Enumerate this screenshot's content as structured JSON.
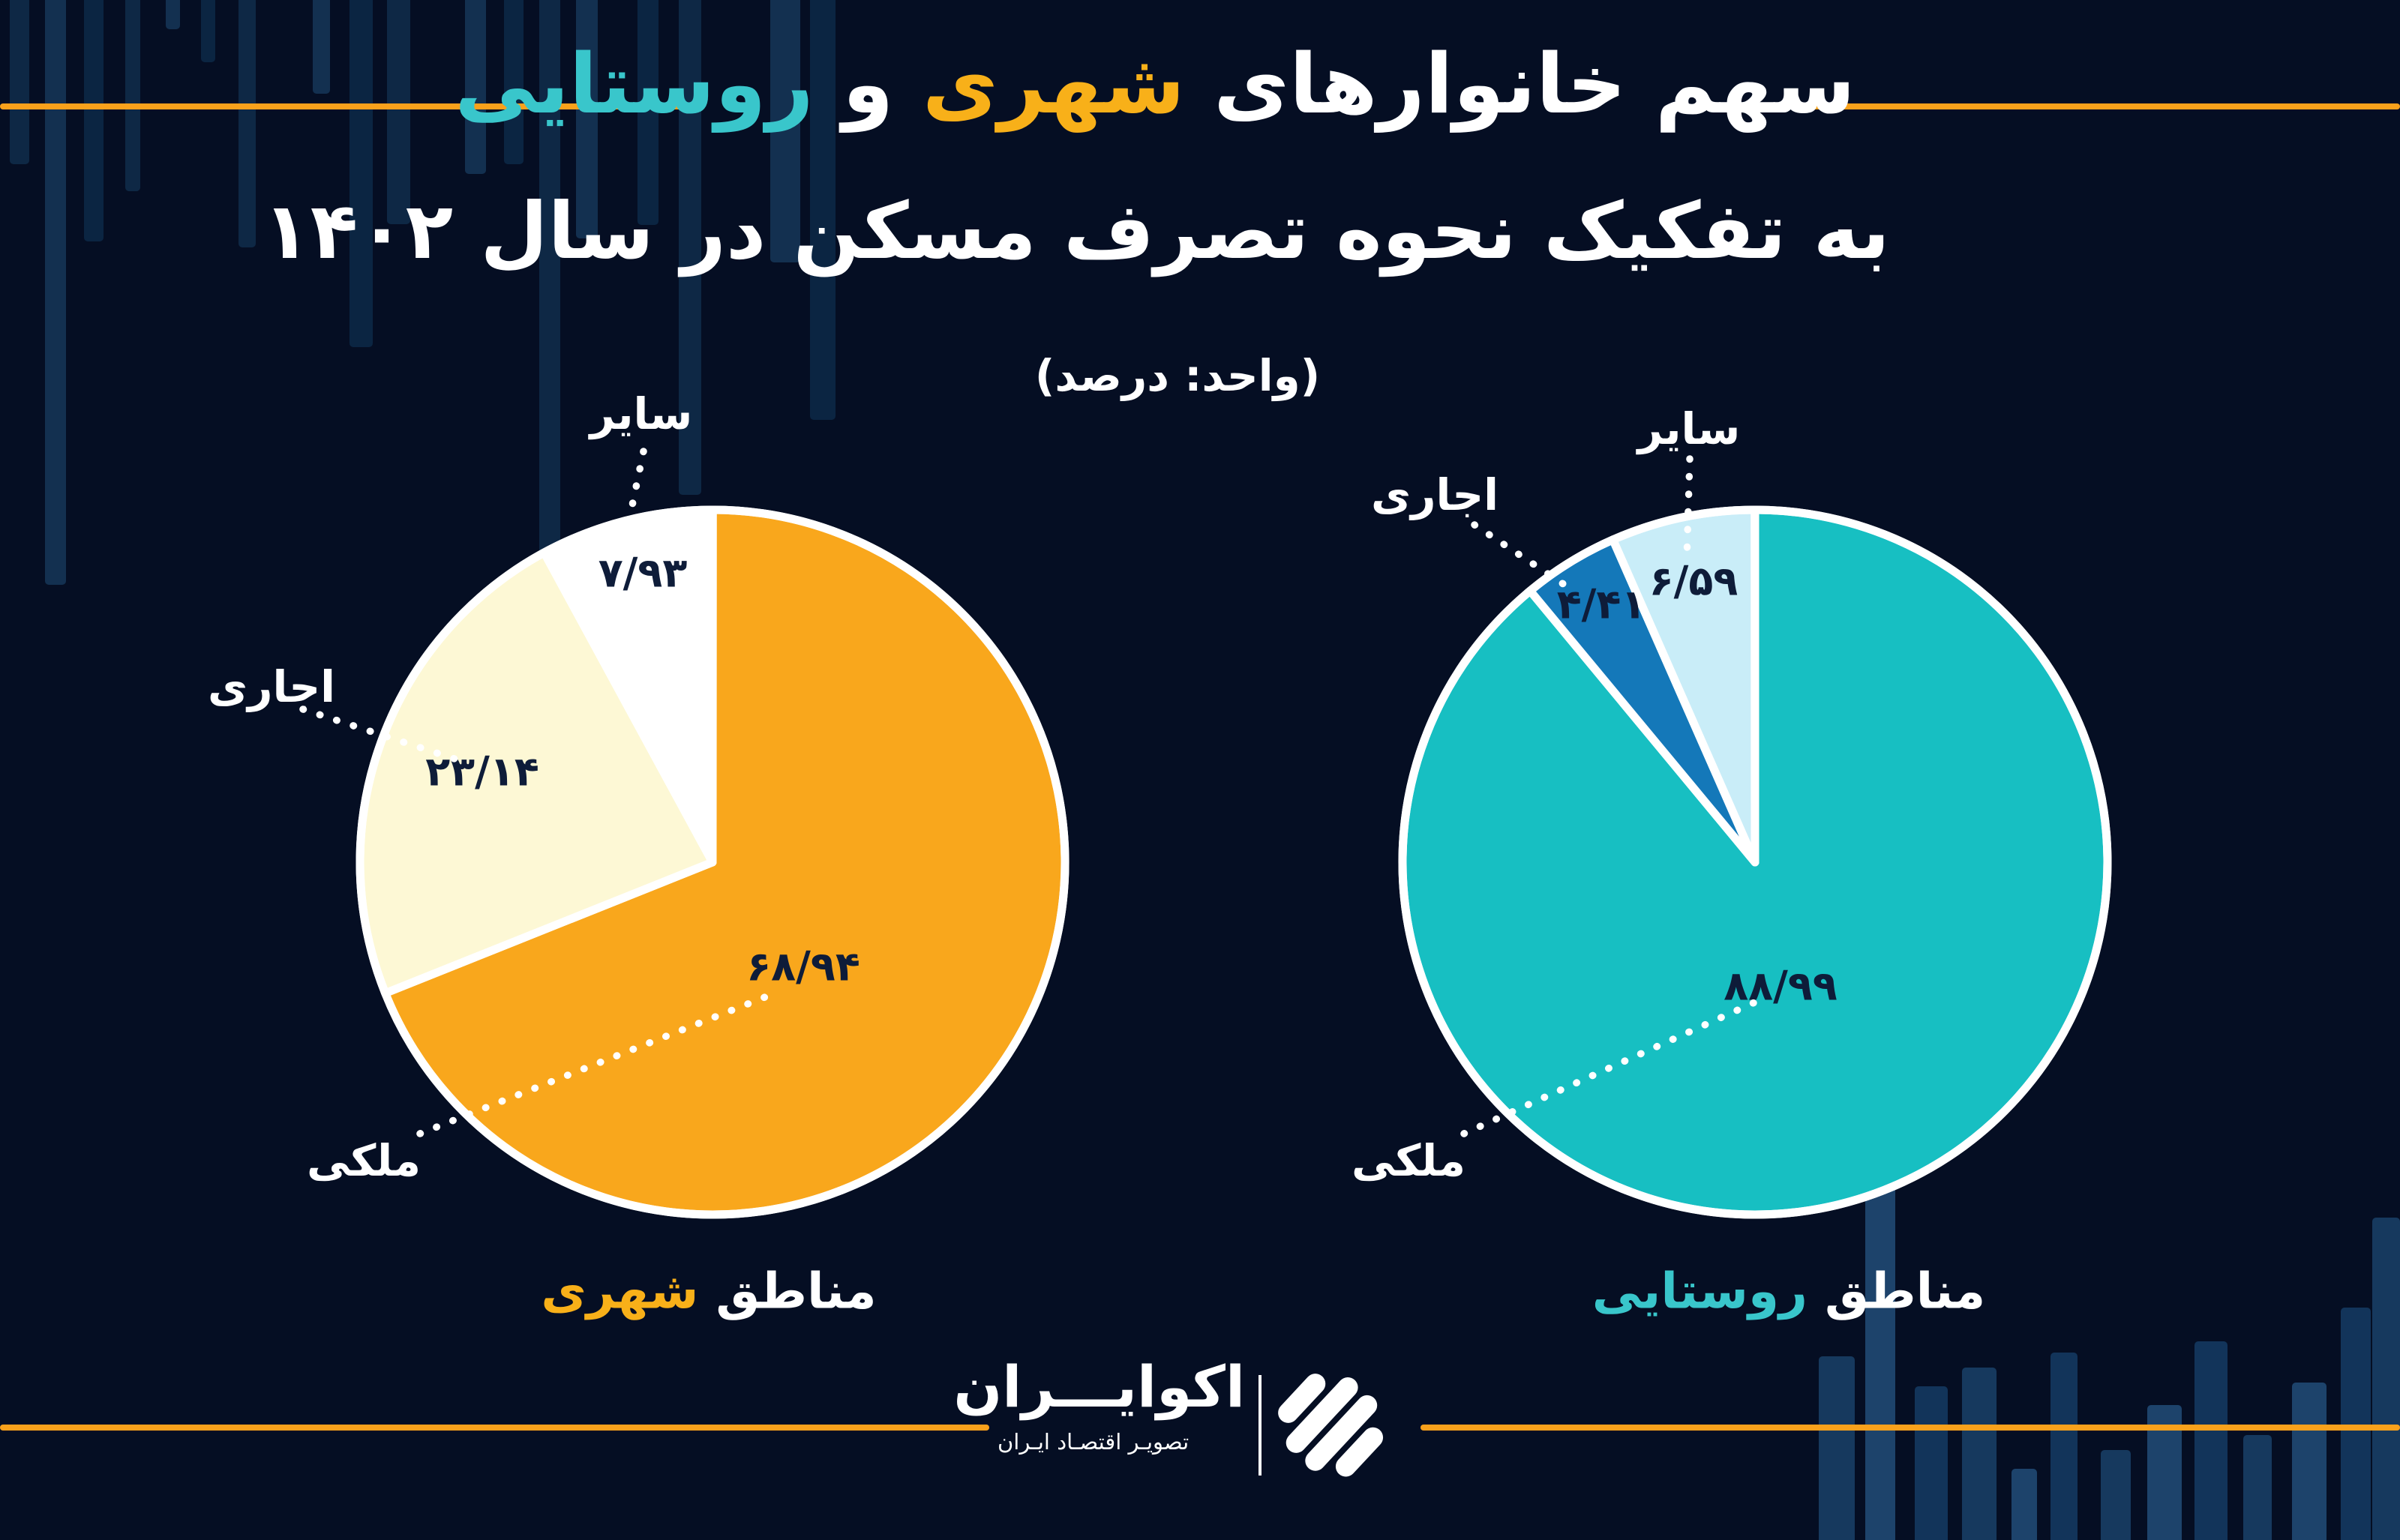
{
  "title": {
    "line1": {
      "prefix": "سهم خانوارهای",
      "urban": "شهری",
      "conjunction": "و",
      "rural": "روستایی"
    },
    "line2": "به تفکیک نحوه تصرف مسکن در سال ۱۴۰۲",
    "unit_note": "(واحد: درصد)"
  },
  "colors": {
    "background": "#050E23",
    "accent_line": "#F9A11B",
    "title_urban_highlight": "#F8B019",
    "title_rural_highlight": "#39C6CB",
    "value_text": "#0E1C39",
    "urban_pie": {
      "owned": "#F9A71C",
      "rented": "#FDF8D5",
      "other": "#FFFFFF"
    },
    "rural_pie": {
      "owned": "#17BFC2",
      "rented": "#1478B9",
      "other": "#C9EDF8"
    }
  },
  "chart_data": [
    {
      "type": "pie",
      "caption_prefix": "مناطق",
      "caption_region": "شهری",
      "unit": "درصد",
      "start_angle": "12-oclock",
      "direction": "clockwise",
      "slices": [
        {
          "label": "ملکی",
          "value": 68.94,
          "value_fa": "۶۸/۹۴",
          "color": "#F9A71C"
        },
        {
          "label": "اجاری",
          "value": 23.14,
          "value_fa": "۲۳/۱۴",
          "color": "#FDF8D5"
        },
        {
          "label": "سایر",
          "value": 7.93,
          "value_fa": "۷/۹۳",
          "color": "#FFFFFF"
        }
      ]
    },
    {
      "type": "pie",
      "caption_prefix": "مناطق",
      "caption_region": "روستایی",
      "unit": "درصد",
      "start_angle": "12-oclock",
      "direction": "clockwise",
      "slices": [
        {
          "label": "ملکی",
          "value": 88.99,
          "value_fa": "۸۸/۹۹",
          "color": "#17BFC2"
        },
        {
          "label": "اجاری",
          "value": 4.41,
          "value_fa": "۴/۴۱",
          "color": "#1478B9"
        },
        {
          "label": "سایر",
          "value": 6.59,
          "value_fa": "۶/۵۹",
          "color": "#C9EDF8"
        }
      ]
    }
  ],
  "logo": {
    "name": "اکوایـــران",
    "tagline": "تصویـر اقتصـاد ایـران"
  }
}
